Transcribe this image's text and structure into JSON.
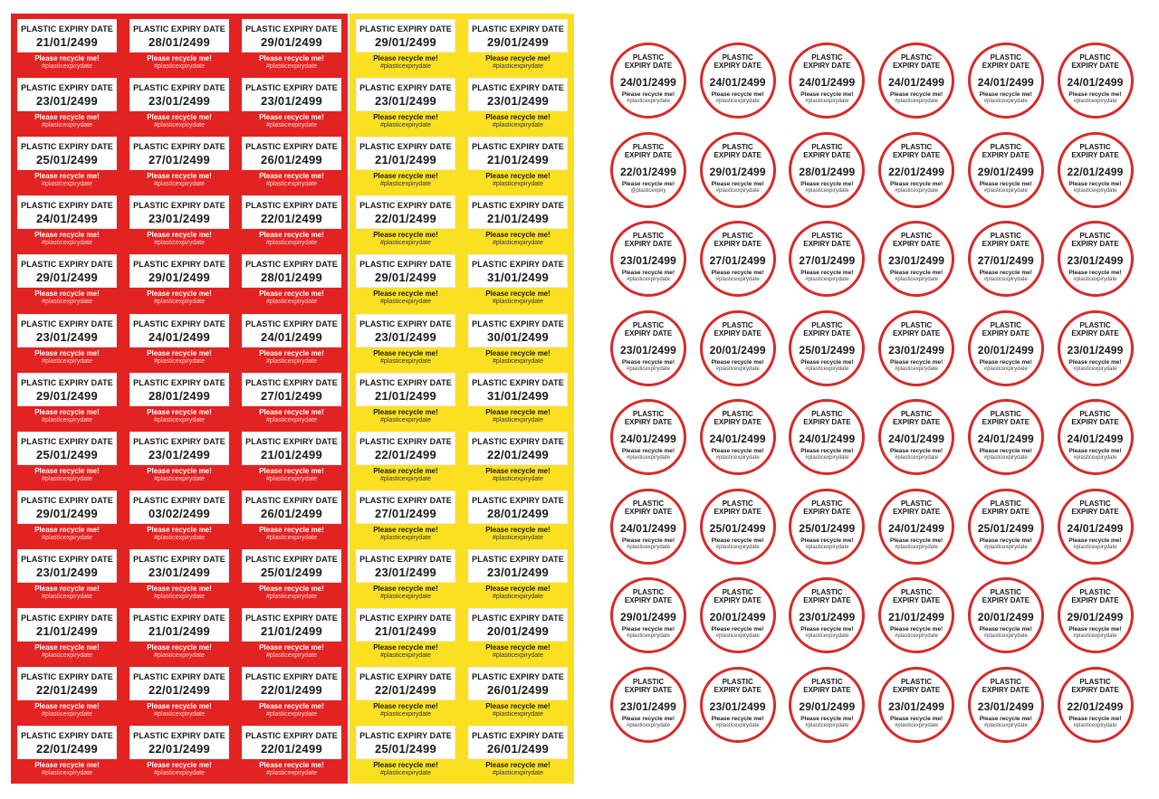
{
  "label_title": "PLASTIC EXPIRY DATE",
  "circle_title_line1": "PLASTIC",
  "circle_title_line2": "EXPIRY DATE",
  "recycle_text": "Please recycle me!",
  "hashtag": "#plasticexpirydate",
  "colors": {
    "red_sheet": "#e32322",
    "yellow_sheet": "#fbe022",
    "circle_border": "#d52b2b"
  },
  "red_sheet": {
    "rows": [
      [
        "21/01/2499",
        "28/01/2499",
        "29/01/2499"
      ],
      [
        "23/01/2499",
        "23/01/2499",
        "23/01/2499"
      ],
      [
        "25/01/2499",
        "27/01/2499",
        "26/01/2499"
      ],
      [
        "24/01/2499",
        "23/01/2499",
        "22/01/2499"
      ],
      [
        "29/01/2499",
        "29/01/2499",
        "28/01/2499"
      ],
      [
        "23/01/2499",
        "24/01/2499",
        "24/01/2499"
      ],
      [
        "29/01/2499",
        "28/01/2499",
        "27/01/2499"
      ],
      [
        "25/01/2499",
        "23/01/2499",
        "21/01/2499"
      ],
      [
        "29/01/2499",
        "03/02/2499",
        "26/01/2499"
      ],
      [
        "23/01/2499",
        "23/01/2499",
        "25/01/2499"
      ],
      [
        "21/01/2499",
        "21/01/2499",
        "21/01/2499"
      ],
      [
        "22/01/2499",
        "22/01/2499",
        "22/01/2499"
      ],
      [
        "22/01/2499",
        "22/01/2499",
        "22/01/2499"
      ]
    ]
  },
  "yellow_sheet": {
    "rows": [
      [
        "29/01/2499",
        "29/01/2499"
      ],
      [
        "23/01/2499",
        "23/01/2499"
      ],
      [
        "21/01/2499",
        "21/01/2499"
      ],
      [
        "22/01/2499",
        "21/01/2499"
      ],
      [
        "29/01/2499",
        "31/01/2499"
      ],
      [
        "23/01/2499",
        "30/01/2499"
      ],
      [
        "21/01/2499",
        "31/01/2499"
      ],
      [
        "22/01/2499",
        "22/01/2499"
      ],
      [
        "27/01/2499",
        "28/01/2499"
      ],
      [
        "23/01/2499",
        "23/01/2499"
      ],
      [
        "21/01/2499",
        "20/01/2499"
      ],
      [
        "22/01/2499",
        "26/01/2499"
      ],
      [
        "25/01/2499",
        "26/01/2499"
      ]
    ]
  },
  "round_sheet": {
    "rows": [
      [
        {
          "date": "24/01/2499"
        },
        {
          "date": "24/01/2499"
        },
        {
          "date": "24/01/2499"
        },
        {
          "date": "24/01/2499"
        },
        {
          "date": "24/01/2499"
        },
        {
          "date": "24/01/2499"
        }
      ],
      [
        {
          "date": "22/01/2499",
          "tag": "@plasticexpiry"
        },
        {
          "date": "29/01/2499"
        },
        {
          "date": "28/01/2499"
        },
        {
          "date": "22/01/2499"
        },
        {
          "date": "29/01/2499"
        },
        {
          "date": "22/01/2499"
        }
      ],
      [
        {
          "date": "23/01/2499"
        },
        {
          "date": "27/01/2499"
        },
        {
          "date": "27/01/2499"
        },
        {
          "date": "23/01/2499"
        },
        {
          "date": "27/01/2499"
        },
        {
          "date": "23/01/2499"
        }
      ],
      [
        {
          "date": "23/01/2499"
        },
        {
          "date": "20/01/2499"
        },
        {
          "date": "25/01/2499"
        },
        {
          "date": "23/01/2499"
        },
        {
          "date": "20/01/2499"
        },
        {
          "date": "23/01/2499"
        }
      ],
      [
        {
          "date": "24/01/2499"
        },
        {
          "date": "24/01/2499"
        },
        {
          "date": "24/01/2499"
        },
        {
          "date": "24/01/2499"
        },
        {
          "date": "24/01/2499"
        },
        {
          "date": "24/01/2499"
        }
      ],
      [
        {
          "date": "24/01/2499"
        },
        {
          "date": "25/01/2499"
        },
        {
          "date": "25/01/2499"
        },
        {
          "date": "24/01/2499"
        },
        {
          "date": "25/01/2499"
        },
        {
          "date": "24/01/2499"
        }
      ],
      [
        {
          "date": "29/01/2499"
        },
        {
          "date": "20/01/2499"
        },
        {
          "date": "23/01/2499"
        },
        {
          "date": "21/01/2499"
        },
        {
          "date": "20/01/2499"
        },
        {
          "date": "29/01/2499"
        }
      ],
      [
        {
          "date": "23/01/2499"
        },
        {
          "date": "23/01/2499"
        },
        {
          "date": "29/01/2499"
        },
        {
          "date": "23/01/2499"
        },
        {
          "date": "23/01/2499"
        },
        {
          "date": "22/01/2499"
        }
      ]
    ]
  }
}
